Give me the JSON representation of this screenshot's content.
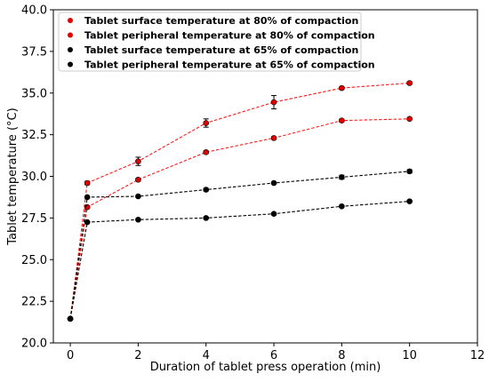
{
  "chart_data": {
    "type": "line",
    "xlabel": "Duration of tablet press operation (min)",
    "ylabel": "Tablet temperature (°C)",
    "xlim": [
      -0.5,
      12
    ],
    "ylim": [
      20.0,
      40.0
    ],
    "xticks": [
      0,
      2,
      4,
      6,
      8,
      10,
      12
    ],
    "yticks": [
      20.0,
      22.5,
      25.0,
      27.5,
      30.0,
      32.5,
      35.0,
      37.5,
      40.0
    ],
    "ytick_labels": [
      "20.0",
      "22.5",
      "25.0",
      "27.5",
      "30.0",
      "32.5",
      "35.0",
      "37.5",
      "40.0"
    ],
    "grid": false,
    "legend_position": "top-left",
    "series": [
      {
        "name": "Tablet surface temperature at 80% of compaction",
        "color": "#e00000",
        "line_color": "#ff1a1a",
        "x": [
          0,
          0.5,
          2,
          4,
          6,
          8,
          10
        ],
        "y": [
          21.45,
          29.6,
          30.9,
          33.2,
          34.45,
          35.3,
          35.6
        ],
        "yerr": [
          0,
          0.1,
          0.25,
          0.25,
          0.4,
          0.08,
          0.08
        ]
      },
      {
        "name": "Tablet peripheral temperature at 80% of compaction",
        "color": "#e00000",
        "line_color": "#ff1a1a",
        "x": [
          0,
          0.5,
          2,
          4,
          6,
          8,
          10
        ],
        "y": [
          21.45,
          28.15,
          29.8,
          31.45,
          32.3,
          33.35,
          33.45
        ],
        "yerr": [
          0,
          0.08,
          0.08,
          0.08,
          0.08,
          0.08,
          0.05
        ]
      },
      {
        "name": "Tablet surface temperature at 65% of compaction",
        "color": "#000000",
        "line_color": "#000000",
        "x": [
          0,
          0.5,
          2,
          4,
          6,
          8,
          10
        ],
        "y": [
          21.45,
          28.75,
          28.8,
          29.2,
          29.6,
          29.95,
          30.3
        ],
        "yerr": [
          0,
          0.05,
          0.05,
          0.08,
          0.05,
          0.12,
          0.1
        ]
      },
      {
        "name": "Tablet peripheral temperature at 65% of compaction",
        "color": "#000000",
        "line_color": "#000000",
        "x": [
          0,
          0.5,
          2,
          4,
          6,
          8,
          10
        ],
        "y": [
          21.45,
          27.25,
          27.4,
          27.5,
          27.75,
          28.2,
          28.5
        ],
        "yerr": [
          0,
          0.05,
          0.05,
          0.05,
          0.05,
          0.05,
          0.05
        ]
      }
    ]
  }
}
